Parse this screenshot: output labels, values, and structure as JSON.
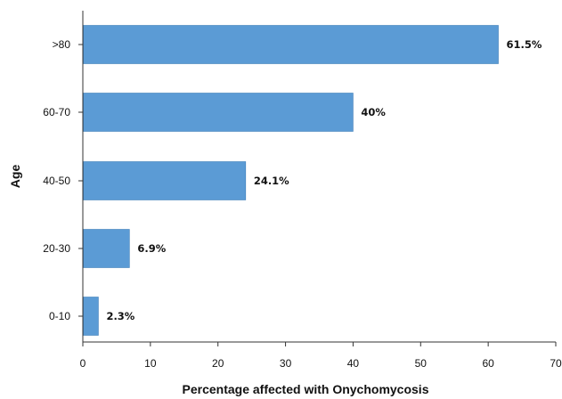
{
  "chart_data": {
    "type": "bar",
    "orientation": "horizontal",
    "categories": [
      ">80",
      "60-70",
      "40-50",
      "20-30",
      "0-10"
    ],
    "values": [
      61.5,
      40,
      24.1,
      6.9,
      2.3
    ],
    "data_labels": [
      "61.5%",
      "40%",
      "24.1%",
      "6.9%",
      "2.3%"
    ],
    "title": "",
    "xlabel": "Percentage affected with Onychomycosis",
    "ylabel": "Age",
    "xlim": [
      0,
      70
    ],
    "x_ticks": [
      0,
      10,
      20,
      30,
      40,
      50,
      60,
      70
    ],
    "grid": false,
    "bar_color": "#5b9bd5",
    "bar_edge_color": "#3f7fba"
  }
}
